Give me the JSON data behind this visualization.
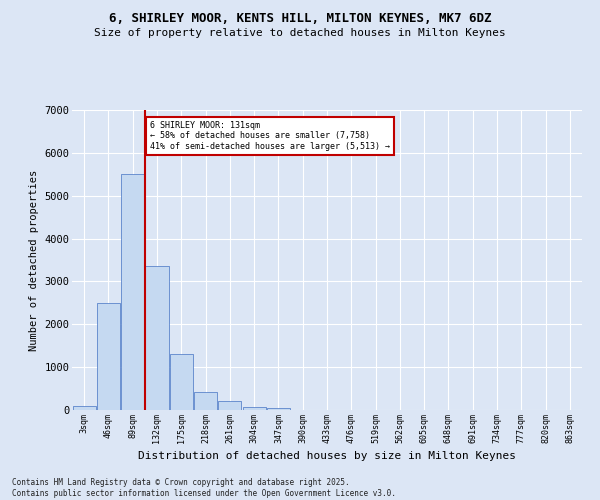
{
  "title": "6, SHIRLEY MOOR, KENTS HILL, MILTON KEYNES, MK7 6DZ",
  "subtitle": "Size of property relative to detached houses in Milton Keynes",
  "xlabel": "Distribution of detached houses by size in Milton Keynes",
  "ylabel": "Number of detached properties",
  "categories": [
    "3sqm",
    "46sqm",
    "89sqm",
    "132sqm",
    "175sqm",
    "218sqm",
    "261sqm",
    "304sqm",
    "347sqm",
    "390sqm",
    "433sqm",
    "476sqm",
    "519sqm",
    "562sqm",
    "605sqm",
    "648sqm",
    "691sqm",
    "734sqm",
    "777sqm",
    "820sqm",
    "863sqm"
  ],
  "bar_values": [
    100,
    2500,
    5500,
    3350,
    1300,
    425,
    200,
    75,
    50,
    0,
    0,
    0,
    0,
    0,
    0,
    0,
    0,
    0,
    0,
    0,
    0
  ],
  "bar_color": "#c5d9f1",
  "bar_edge_color": "#4472c4",
  "vline_x_index": 2.5,
  "vline_color": "#c00000",
  "annotation_title": "6 SHIRLEY MOOR: 131sqm",
  "annotation_line1": "← 58% of detached houses are smaller (7,758)",
  "annotation_line2": "41% of semi-detached houses are larger (5,513) →",
  "annotation_box_color": "#c00000",
  "ylim": [
    0,
    7000
  ],
  "yticks": [
    0,
    1000,
    2000,
    3000,
    4000,
    5000,
    6000,
    7000
  ],
  "background_color": "#dce6f5",
  "grid_color": "#ffffff",
  "footer_line1": "Contains HM Land Registry data © Crown copyright and database right 2025.",
  "footer_line2": "Contains public sector information licensed under the Open Government Licence v3.0."
}
